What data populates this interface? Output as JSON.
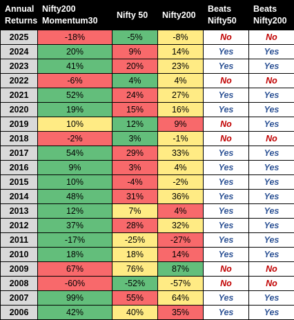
{
  "colors": {
    "green": "#63be7b",
    "red": "#f8696b",
    "yellow": "#ffeb84",
    "yes_text": "#2f5496",
    "no_text": "#c00000",
    "header_bg": "#000000",
    "year_bg": "#d9d9d9"
  },
  "headers": [
    "Annual\nReturns",
    "Nifty200\nMomentum30",
    "Nifty 50",
    "Nifty200",
    "Beats\nNifty50",
    "Beats\nNifty200"
  ],
  "rows": [
    {
      "year": "2025",
      "mom": "-18%",
      "mom_c": "r",
      "n50": "-5%",
      "n50_c": "g",
      "n200": "-8%",
      "n200_c": "y",
      "b50": "No",
      "b200": "No"
    },
    {
      "year": "2024",
      "mom": "20%",
      "mom_c": "g",
      "n50": "9%",
      "n50_c": "r",
      "n200": "14%",
      "n200_c": "y",
      "b50": "Yes",
      "b200": "Yes"
    },
    {
      "year": "2023",
      "mom": "41%",
      "mom_c": "g",
      "n50": "20%",
      "n50_c": "r",
      "n200": "23%",
      "n200_c": "y",
      "b50": "Yes",
      "b200": "Yes"
    },
    {
      "year": "2022",
      "mom": "-6%",
      "mom_c": "r",
      "n50": "4%",
      "n50_c": "g",
      "n200": "4%",
      "n200_c": "y",
      "b50": "No",
      "b200": "No"
    },
    {
      "year": "2021",
      "mom": "52%",
      "mom_c": "g",
      "n50": "24%",
      "n50_c": "r",
      "n200": "27%",
      "n200_c": "y",
      "b50": "Yes",
      "b200": "Yes"
    },
    {
      "year": "2020",
      "mom": "19%",
      "mom_c": "g",
      "n50": "15%",
      "n50_c": "r",
      "n200": "16%",
      "n200_c": "y",
      "b50": "Yes",
      "b200": "Yes"
    },
    {
      "year": "2019",
      "mom": "10%",
      "mom_c": "y",
      "n50": "12%",
      "n50_c": "g",
      "n200": "9%",
      "n200_c": "r",
      "b50": "No",
      "b200": "Yes"
    },
    {
      "year": "2018",
      "mom": "-2%",
      "mom_c": "r",
      "n50": "3%",
      "n50_c": "g",
      "n200": "-1%",
      "n200_c": "y",
      "b50": "No",
      "b200": "No"
    },
    {
      "year": "2017",
      "mom": "54%",
      "mom_c": "g",
      "n50": "29%",
      "n50_c": "r",
      "n200": "33%",
      "n200_c": "y",
      "b50": "Yes",
      "b200": "Yes"
    },
    {
      "year": "2016",
      "mom": "9%",
      "mom_c": "g",
      "n50": "3%",
      "n50_c": "r",
      "n200": "4%",
      "n200_c": "y",
      "b50": "Yes",
      "b200": "Yes"
    },
    {
      "year": "2015",
      "mom": "10%",
      "mom_c": "g",
      "n50": "-4%",
      "n50_c": "r",
      "n200": "-2%",
      "n200_c": "y",
      "b50": "Yes",
      "b200": "Yes"
    },
    {
      "year": "2014",
      "mom": "48%",
      "mom_c": "g",
      "n50": "31%",
      "n50_c": "r",
      "n200": "36%",
      "n200_c": "y",
      "b50": "Yes",
      "b200": "Yes"
    },
    {
      "year": "2013",
      "mom": "12%",
      "mom_c": "g",
      "n50": "7%",
      "n50_c": "y",
      "n200": "4%",
      "n200_c": "r",
      "b50": "Yes",
      "b200": "Yes"
    },
    {
      "year": "2012",
      "mom": "37%",
      "mom_c": "g",
      "n50": "28%",
      "n50_c": "r",
      "n200": "32%",
      "n200_c": "y",
      "b50": "Yes",
      "b200": "Yes"
    },
    {
      "year": "2011",
      "mom": "-17%",
      "mom_c": "g",
      "n50": "-25%",
      "n50_c": "y",
      "n200": "-27%",
      "n200_c": "r",
      "b50": "Yes",
      "b200": "Yes"
    },
    {
      "year": "2010",
      "mom": "18%",
      "mom_c": "g",
      "n50": "18%",
      "n50_c": "y",
      "n200": "14%",
      "n200_c": "r",
      "b50": "Yes",
      "b200": "Yes"
    },
    {
      "year": "2009",
      "mom": "67%",
      "mom_c": "r",
      "n50": "76%",
      "n50_c": "y",
      "n200": "87%",
      "n200_c": "g",
      "b50": "No",
      "b200": "No"
    },
    {
      "year": "2008",
      "mom": "-60%",
      "mom_c": "r",
      "n50": "-52%",
      "n50_c": "g",
      "n200": "-57%",
      "n200_c": "y",
      "b50": "No",
      "b200": "No"
    },
    {
      "year": "2007",
      "mom": "99%",
      "mom_c": "g",
      "n50": "55%",
      "n50_c": "r",
      "n200": "64%",
      "n200_c": "y",
      "b50": "Yes",
      "b200": "Yes"
    },
    {
      "year": "2006",
      "mom": "42%",
      "mom_c": "g",
      "n50": "40%",
      "n50_c": "y",
      "n200": "35%",
      "n200_c": "r",
      "b50": "Yes",
      "b200": "Yes"
    }
  ]
}
